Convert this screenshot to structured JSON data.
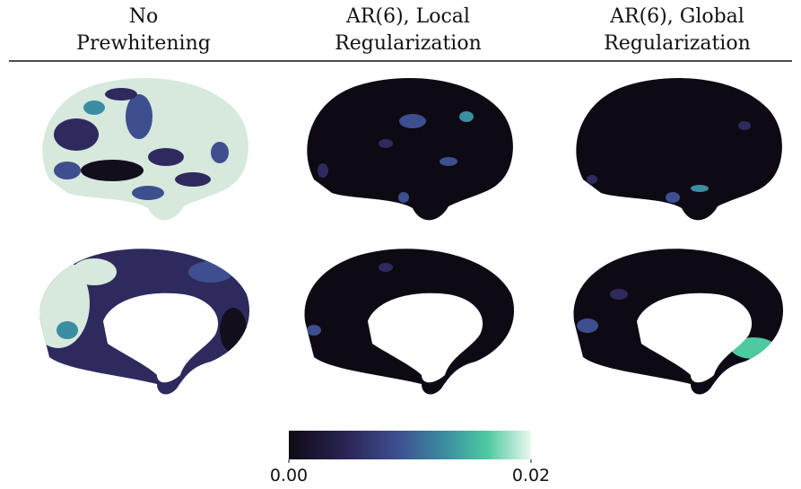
{
  "columns": [
    {
      "title_lines": [
        "No",
        "Prewhitening"
      ]
    },
    {
      "title_lines": [
        "AR(6), Local",
        "Regularization"
      ]
    },
    {
      "title_lines": [
        "AR(6), Global",
        "Regularization"
      ]
    }
  ],
  "colorbar": {
    "range": [
      0,
      0.02
    ],
    "ticks": [
      {
        "value": 0,
        "label": "0.00"
      },
      {
        "value": 0.02,
        "label": "0.02"
      }
    ]
  }
}
